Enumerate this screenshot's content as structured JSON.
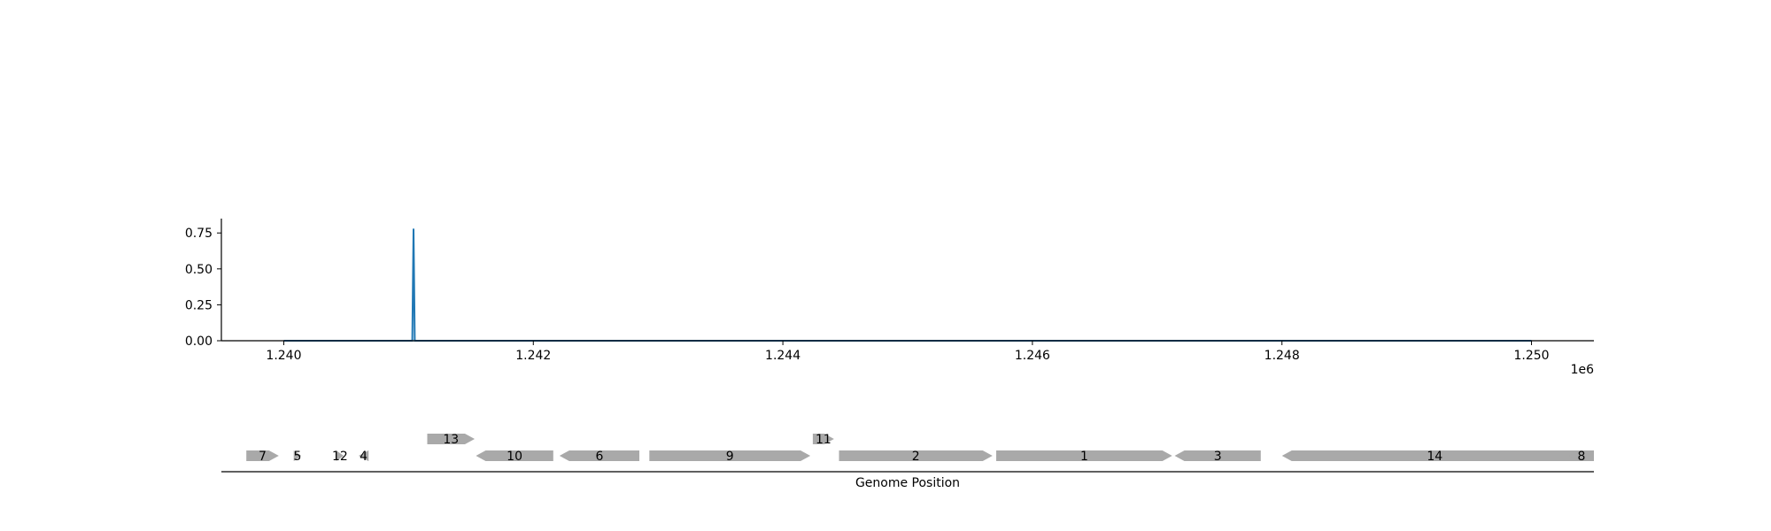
{
  "chart_data": [
    {
      "type": "line",
      "title": "",
      "xlabel": "",
      "ylabel": "",
      "x_offset_label": "1e6",
      "xlim": [
        1239500,
        1250500
      ],
      "ylim": [
        0,
        0.85
      ],
      "x_ticks": [
        1240000,
        1242000,
        1244000,
        1246000,
        1248000,
        1250000
      ],
      "x_tick_labels": [
        "1.240",
        "1.242",
        "1.244",
        "1.246",
        "1.248",
        "1.250"
      ],
      "y_ticks": [
        0,
        0.25,
        0.5,
        0.75
      ],
      "y_tick_labels": [
        "0.00",
        "0.25",
        "0.50",
        "0.75"
      ],
      "grid": false,
      "color": "#1f77b4",
      "x": [
        1240000,
        1241030,
        1241040,
        1241050,
        1250000
      ],
      "values": [
        0,
        0,
        0.78,
        0,
        0
      ]
    },
    {
      "type": "gene-track",
      "xlabel": "Genome Position",
      "xlim": [
        1239500,
        1250500
      ],
      "feature_color": "#a9a9a9",
      "genes": [
        {
          "label": "7",
          "start": 1239700,
          "end": 1239960,
          "strand": "+",
          "row": 0
        },
        {
          "label": "5",
          "start": 1240080,
          "end": 1240140,
          "strand": "+",
          "row": 0
        },
        {
          "label": "12",
          "start": 1240420,
          "end": 1240480,
          "strand": "+",
          "row": 0
        },
        {
          "label": "4",
          "start": 1240600,
          "end": 1240680,
          "strand": "-",
          "row": 0
        },
        {
          "label": "13",
          "start": 1241150,
          "end": 1241530,
          "strand": "+",
          "row": 1
        },
        {
          "label": "10",
          "start": 1241540,
          "end": 1242160,
          "strand": "-",
          "row": 0
        },
        {
          "label": "6",
          "start": 1242210,
          "end": 1242850,
          "strand": "-",
          "row": 0
        },
        {
          "label": "9",
          "start": 1242930,
          "end": 1244220,
          "strand": "+",
          "row": 0
        },
        {
          "label": "11",
          "start": 1244240,
          "end": 1244410,
          "strand": "+",
          "row": 1
        },
        {
          "label": "2",
          "start": 1244450,
          "end": 1245680,
          "strand": "+",
          "row": 0
        },
        {
          "label": "1",
          "start": 1245710,
          "end": 1247120,
          "strand": "+",
          "row": 0
        },
        {
          "label": "3",
          "start": 1247140,
          "end": 1247830,
          "strand": "-",
          "row": 0
        },
        {
          "label": "14",
          "start": 1248000,
          "end": 1250450,
          "strand": "-",
          "row": 0
        },
        {
          "label": "8",
          "start": 1250300,
          "end": 1250500,
          "strand": "-",
          "row": 0
        }
      ]
    }
  ]
}
